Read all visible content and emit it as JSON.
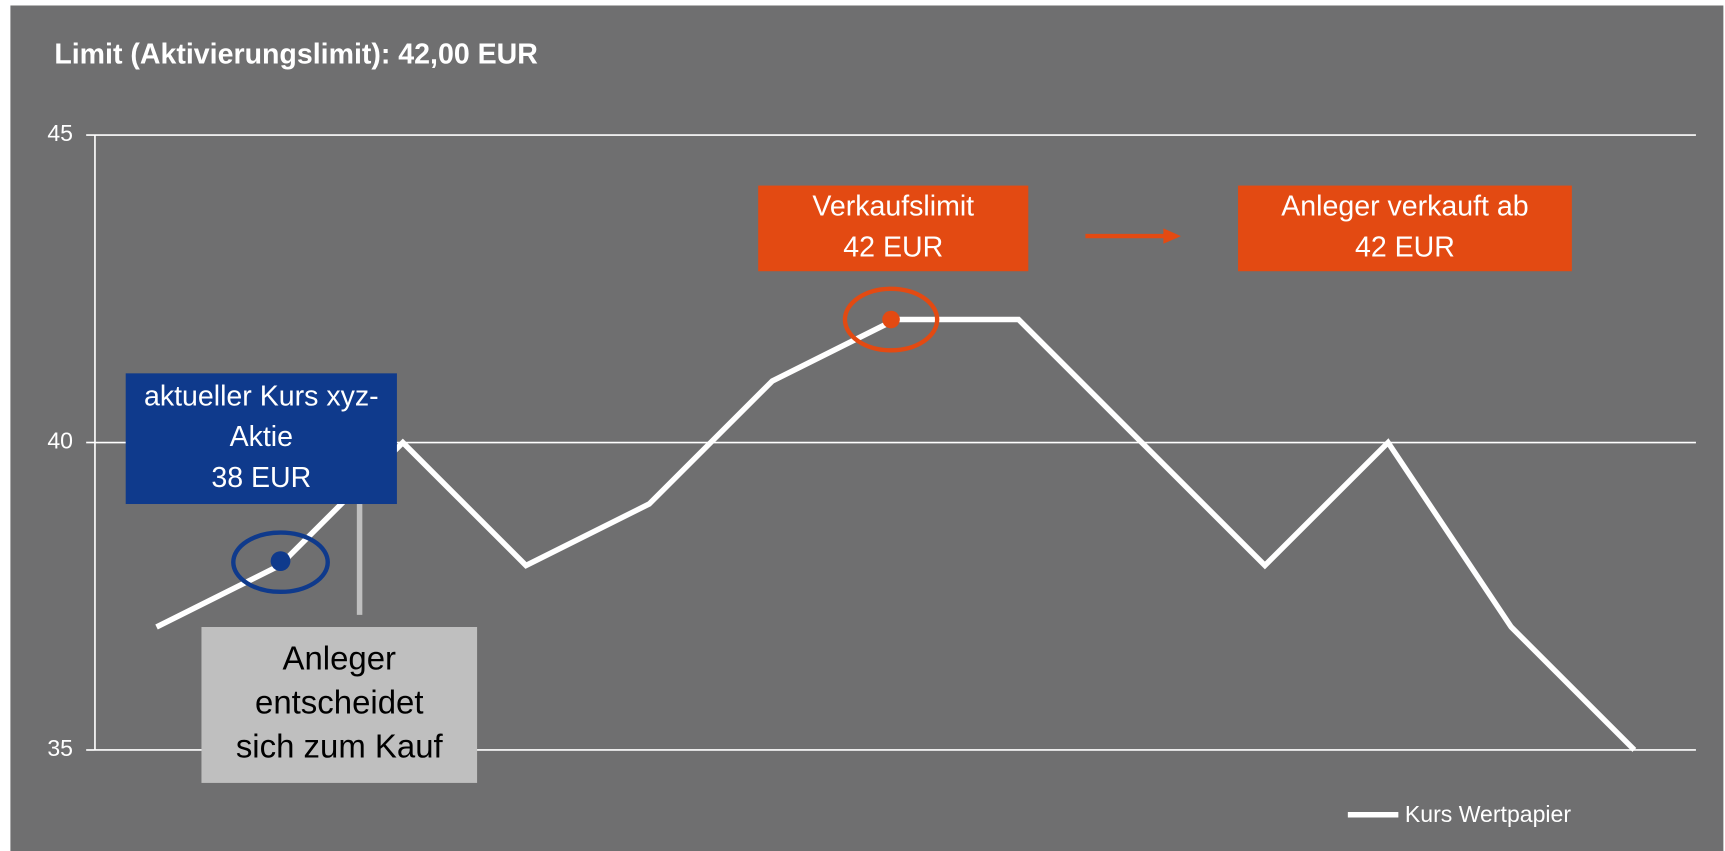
{
  "chart_data": {
    "type": "line",
    "title": "Limit (Aktivierungslimit): 42,00 EUR",
    "categories": [
      null,
      null,
      null,
      null,
      null,
      null,
      null,
      null,
      null,
      null,
      null,
      null,
      null
    ],
    "series": [
      {
        "name": "Kurs Wertpapier",
        "color": "#ffffff",
        "values": [
          37,
          38,
          40,
          38,
          39,
          41,
          42,
          42,
          40,
          38,
          40,
          37,
          35
        ]
      }
    ],
    "ylim": [
      35,
      45
    ],
    "yticks": [
      35,
      40,
      45
    ],
    "grid": true,
    "legend": "bottom-right",
    "annotations": [
      {
        "lines": [
          "aktueller Kurs xyz-",
          "Aktie",
          "38 EUR"
        ],
        "color": "#0f3a8c"
      },
      {
        "lines": [
          "Anleger",
          "entscheidet",
          "sich zum Kauf"
        ],
        "color": "#bfbfbf"
      },
      {
        "lines": [
          "Verkaufslimit",
          "42 EUR"
        ],
        "color": "#e34a12"
      },
      {
        "lines": [
          "Anleger verkauft ab",
          "42 EUR"
        ],
        "color": "#e34a12"
      }
    ]
  }
}
